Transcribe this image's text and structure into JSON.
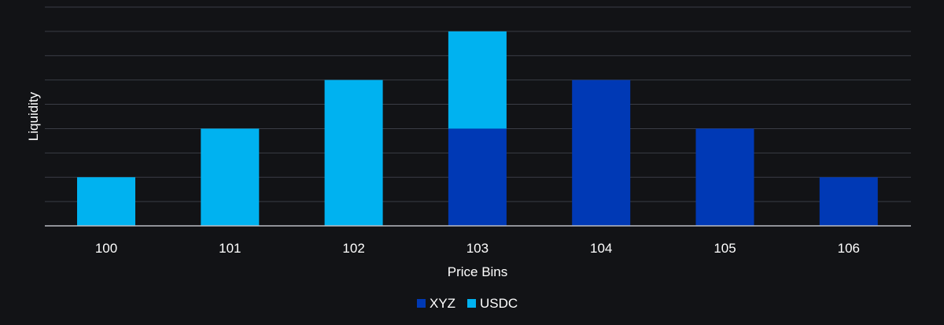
{
  "chart_data": {
    "type": "bar",
    "stacked": true,
    "categories": [
      "100",
      "101",
      "102",
      "103",
      "104",
      "105",
      "106"
    ],
    "series": [
      {
        "name": "XYZ",
        "color": "#0039b5",
        "values": [
          0,
          0,
          0,
          2,
          3,
          2,
          1
        ]
      },
      {
        "name": "USDC",
        "color": "#00b2f0",
        "values": [
          1,
          2,
          3,
          2,
          0,
          0,
          0
        ]
      }
    ],
    "xlabel": "Price Bins",
    "ylabel": "Liquidity",
    "ylim": [
      0,
      4.5
    ],
    "grid": true,
    "legend_position": "bottom-center"
  }
}
